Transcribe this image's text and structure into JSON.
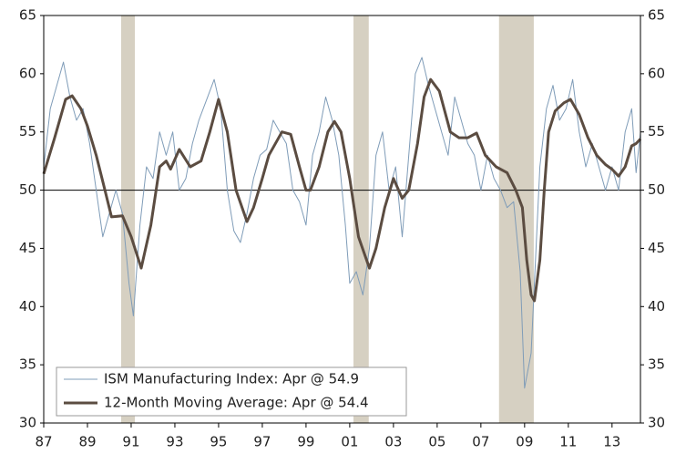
{
  "chart_data": {
    "type": "line",
    "series": [
      {
        "name": "ISM Manufacturing Index: Apr @ 54.9",
        "color": "#7f9cb8",
        "width": 1,
        "x": [
          1987.0,
          1987.3,
          1987.6,
          1987.9,
          1988.2,
          1988.5,
          1988.8,
          1989.1,
          1989.4,
          1989.7,
          1990.0,
          1990.3,
          1990.6,
          1990.9,
          1991.1,
          1991.4,
          1991.7,
          1992.0,
          1992.3,
          1992.6,
          1992.9,
          1993.2,
          1993.5,
          1993.8,
          1994.1,
          1994.5,
          1994.8,
          1995.1,
          1995.4,
          1995.7,
          1996.0,
          1996.3,
          1996.6,
          1996.9,
          1997.2,
          1997.5,
          1997.8,
          1998.1,
          1998.4,
          1998.7,
          1999.0,
          1999.3,
          1999.6,
          1999.9,
          2000.2,
          2000.5,
          2000.8,
          2001.0,
          2001.3,
          2001.6,
          2001.9,
          2002.2,
          2002.5,
          2002.8,
          2003.1,
          2003.4,
          2003.7,
          2004.0,
          2004.3,
          2004.6,
          2004.9,
          2005.2,
          2005.5,
          2005.8,
          2006.1,
          2006.4,
          2006.7,
          2007.0,
          2007.3,
          2007.6,
          2007.9,
          2008.2,
          2008.5,
          2008.8,
          2009.0,
          2009.3,
          2009.5,
          2009.7,
          2010.0,
          2010.3,
          2010.6,
          2010.9,
          2011.2,
          2011.5,
          2011.8,
          2012.1,
          2012.4,
          2012.7,
          2013.0,
          2013.3,
          2013.6,
          2013.9,
          2014.1,
          2014.3
        ],
        "values": [
          52,
          57,
          59,
          61,
          58,
          56,
          57,
          54,
          50,
          46,
          48,
          50,
          48,
          42,
          39.2,
          47,
          52,
          51,
          55,
          53,
          55,
          50,
          51,
          54,
          56,
          58,
          59.5,
          57,
          50,
          46.5,
          45.5,
          48,
          51,
          53,
          53.5,
          56,
          55,
          54,
          50,
          49,
          47,
          53,
          55,
          58,
          56,
          53,
          47,
          42,
          43,
          41,
          45,
          53,
          55,
          50,
          52,
          46,
          53,
          60,
          61.4,
          59,
          57,
          55,
          53,
          58,
          56,
          54,
          53,
          50,
          53,
          51,
          50,
          48.5,
          49,
          43,
          33,
          36,
          44,
          52,
          57,
          59,
          56,
          57,
          59.5,
          55,
          52,
          54,
          52,
          50,
          52,
          50,
          55,
          57,
          51.5,
          54.9
        ]
      },
      {
        "name": "12-Month Moving Average: Apr @ 54.4",
        "color": "#5b4c41",
        "width": 3,
        "x": [
          1987.0,
          1987.5,
          1988.0,
          1988.3,
          1988.7,
          1989.0,
          1989.4,
          1989.8,
          1990.1,
          1990.6,
          1991.0,
          1991.46,
          1991.9,
          1992.3,
          1992.6,
          1992.8,
          1993.2,
          1993.7,
          1994.2,
          1994.6,
          1995.0,
          1995.4,
          1995.8,
          1996.3,
          1996.6,
          1997.0,
          1997.3,
          1997.9,
          1998.3,
          1998.7,
          1999.0,
          1999.2,
          1999.6,
          2000.0,
          2000.3,
          2000.6,
          2001.0,
          2001.4,
          2001.9,
          2002.2,
          2002.6,
          2003.0,
          2003.4,
          2003.7,
          2004.1,
          2004.4,
          2004.7,
          2005.1,
          2005.6,
          2006.0,
          2006.4,
          2006.8,
          2007.2,
          2007.7,
          2008.2,
          2008.6,
          2008.9,
          2009.1,
          2009.3,
          2009.45,
          2009.7,
          2009.9,
          2010.1,
          2010.4,
          2010.8,
          2011.1,
          2011.5,
          2011.9,
          2012.3,
          2012.7,
          2013.0,
          2013.3,
          2013.6,
          2013.9,
          2014.1,
          2014.3
        ],
        "values": [
          51.4,
          54.5,
          57.8,
          58.1,
          57,
          55.5,
          53,
          50,
          47.7,
          47.8,
          46,
          43.3,
          47,
          52,
          52.5,
          51.8,
          53.5,
          52,
          52.5,
          55,
          57.8,
          55,
          50,
          47.3,
          48.5,
          51,
          53,
          55,
          54.8,
          52,
          50,
          50,
          52,
          55,
          55.9,
          55,
          51,
          46,
          43.3,
          45,
          48.5,
          51,
          49.3,
          50,
          54,
          58,
          59.5,
          58.5,
          55,
          54.5,
          54.5,
          54.9,
          53,
          52,
          51.5,
          50,
          48.5,
          44,
          41,
          40.5,
          44,
          50,
          55,
          56.8,
          57.5,
          57.8,
          56.5,
          54.5,
          53,
          52.2,
          51.8,
          51.2,
          52,
          53.8,
          54,
          54.4
        ]
      }
    ],
    "xlim": [
      1987,
      2014.3
    ],
    "xticks": [
      {
        "value": 1987,
        "label": "87"
      },
      {
        "value": 1989,
        "label": "89"
      },
      {
        "value": 1991,
        "label": "91"
      },
      {
        "value": 1993,
        "label": "93"
      },
      {
        "value": 1995,
        "label": "95"
      },
      {
        "value": 1997,
        "label": "97"
      },
      {
        "value": 1999,
        "label": "99"
      },
      {
        "value": 2001,
        "label": "01"
      },
      {
        "value": 2003,
        "label": "03"
      },
      {
        "value": 2005,
        "label": "05"
      },
      {
        "value": 2007,
        "label": "07"
      },
      {
        "value": 2009,
        "label": "09"
      },
      {
        "value": 2011,
        "label": "11"
      },
      {
        "value": 2013,
        "label": "13"
      }
    ],
    "ylim": [
      30,
      65
    ],
    "yticks": [
      30,
      35,
      40,
      45,
      50,
      55,
      60,
      65
    ],
    "y2lim": [
      30,
      65
    ],
    "y2ticks": [
      30,
      35,
      40,
      45,
      50,
      55,
      60,
      65
    ],
    "reference_line": 50,
    "shaded_ranges": [
      [
        1990.54,
        1991.17
      ],
      [
        2001.17,
        2001.87
      ],
      [
        2007.83,
        2009.42
      ]
    ],
    "shade_color": "#d6d0c2",
    "legend": "lower left"
  }
}
